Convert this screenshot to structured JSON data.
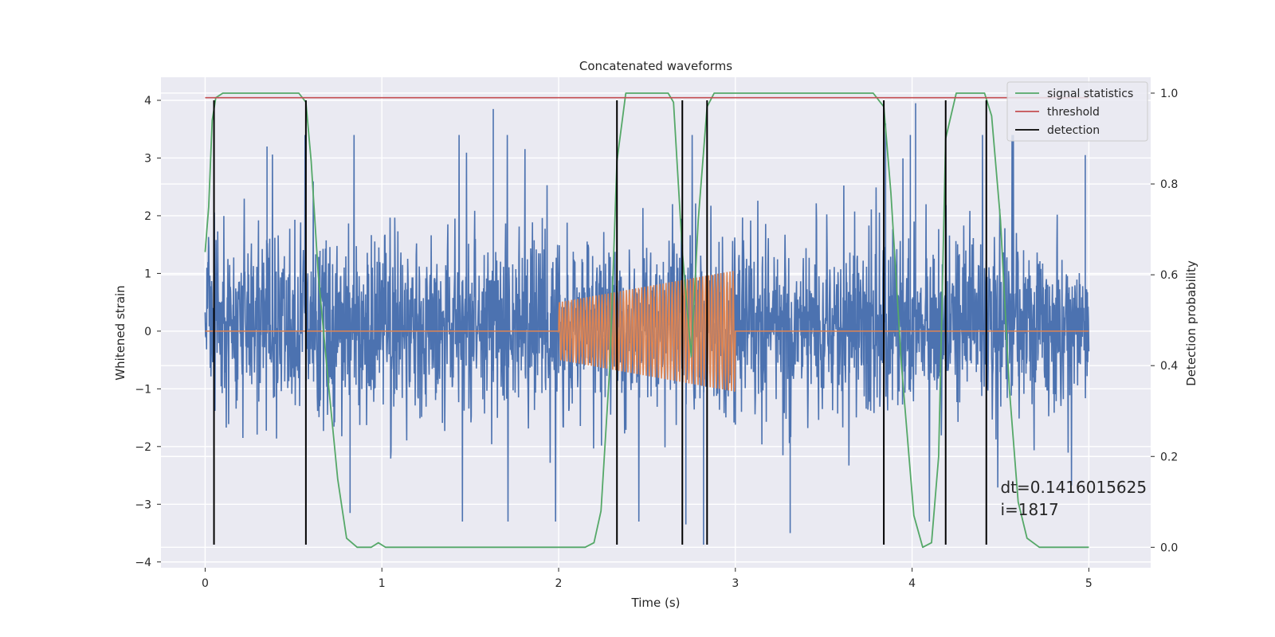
{
  "chart_data": {
    "type": "line",
    "title": "Concatenated waveforms",
    "xlabel": "Time (s)",
    "ylabel": "Whitened strain",
    "ylabel_right": "Detection probability",
    "xlim": [
      -0.25,
      5.35
    ],
    "ylim": [
      -4.1,
      4.4
    ],
    "ylim_right": [
      -0.045,
      1.035
    ],
    "x_ticks": [
      0,
      1,
      2,
      3,
      4,
      5
    ],
    "y_ticks": [
      -4,
      -3,
      -2,
      -1,
      0,
      1,
      2,
      3,
      4
    ],
    "y_ticks_right": [
      0.0,
      0.2,
      0.4,
      0.6,
      0.8,
      1.0
    ],
    "x_tick_labels": [
      "0",
      "1",
      "2",
      "3",
      "4",
      "5"
    ],
    "y_tick_labels": [
      "−4",
      "−3",
      "−2",
      "−1",
      "0",
      "1",
      "2",
      "3",
      "4"
    ],
    "y_tick_labels_right": [
      "0.0",
      "0.2",
      "0.4",
      "0.6",
      "0.8",
      "1.0"
    ],
    "grid": true,
    "legend_position": "top-right",
    "legend": [
      {
        "label": "signal statistics",
        "color": "#55a868"
      },
      {
        "label": "threshold",
        "color": "#c44e52"
      },
      {
        "label": "detection",
        "color": "#000000"
      }
    ],
    "series": [
      {
        "kind": "noise",
        "color": "#4c72b0",
        "x_range": [
          0,
          5
        ],
        "typical_range": [
          -0.9,
          1.2
        ],
        "peaks": [
          {
            "x": 1.63,
            "y": 3.85
          },
          {
            "x": 3.85,
            "y": 3.6
          },
          {
            "x": 3.99,
            "y": 3.4
          },
          {
            "x": 4.02,
            "y": 3.95
          },
          {
            "x": 4.98,
            "y": 3.05
          },
          {
            "x": 0.35,
            "y": 3.2
          },
          {
            "x": 2.72,
            "y": -3.35
          },
          {
            "x": 2.82,
            "y": -3.7
          },
          {
            "x": 0.82,
            "y": -3.15
          },
          {
            "x": 3.31,
            "y": -3.5
          }
        ]
      },
      {
        "kind": "chirp",
        "color": "#dd8452",
        "x_range": [
          0,
          5
        ],
        "chirp_x": [
          2.0,
          3.0
        ],
        "chirp_amplitude_start": 0.5,
        "chirp_amplitude_end": 1.05,
        "chirp_cycles": 58
      },
      {
        "name": "signal statistics",
        "axis": "right",
        "color": "#55a868",
        "x": [
          0,
          0.02,
          0.04,
          0.06,
          0.1,
          0.53,
          0.57,
          0.6,
          0.64,
          0.7,
          0.75,
          0.8,
          0.86,
          0.94,
          0.98,
          1.02,
          1.1,
          2.15,
          2.2,
          2.24,
          2.29,
          2.33,
          2.38,
          2.62,
          2.65,
          2.7,
          2.75,
          2.79,
          2.84,
          2.88,
          2.94,
          3.78,
          3.84,
          3.88,
          3.94,
          4.01,
          4.06,
          4.11,
          4.15,
          4.19,
          4.25,
          4.41,
          4.45,
          4.5,
          4.55,
          4.6,
          4.65,
          4.72,
          5.0
        ],
        "y": [
          0.65,
          0.75,
          0.94,
          0.99,
          1.0,
          1.0,
          0.98,
          0.85,
          0.6,
          0.35,
          0.15,
          0.02,
          0.0,
          0.0,
          0.01,
          0.0,
          0.0,
          0.0,
          0.01,
          0.08,
          0.4,
          0.85,
          1.0,
          1.0,
          0.98,
          0.65,
          0.42,
          0.72,
          0.97,
          1.0,
          1.0,
          1.0,
          0.97,
          0.78,
          0.4,
          0.07,
          0.0,
          0.01,
          0.2,
          0.9,
          1.0,
          1.0,
          0.95,
          0.72,
          0.35,
          0.1,
          0.02,
          0.0,
          0.0
        ]
      },
      {
        "name": "threshold",
        "axis": "right",
        "color": "#c44e52",
        "x": [
          0,
          5
        ],
        "y": [
          0.99,
          0.99
        ]
      },
      {
        "name": "detection",
        "axis": "left",
        "color": "#000000",
        "kind": "vlines",
        "x": [
          0.05,
          0.57,
          2.33,
          2.7,
          2.84,
          3.84,
          4.19,
          4.42
        ],
        "y_range": [
          -3.7,
          4.0
        ]
      }
    ],
    "annotation": {
      "lines": [
        "dt=0.1416015625",
        " i=1817"
      ],
      "x": 4.5,
      "y": -2.8
    }
  }
}
